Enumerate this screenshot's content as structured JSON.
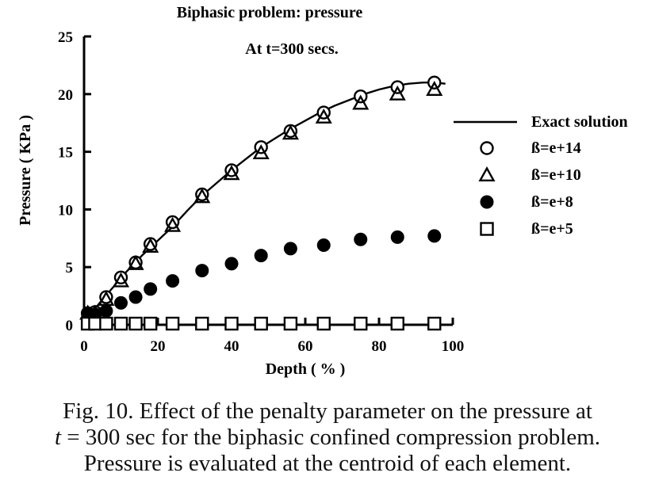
{
  "caption": {
    "line1": "Fig. 10. Effect of the penalty parameter on the pressure at",
    "line2_var": "t",
    "line2_rest": " = 300 sec for the biphasic confined compression problem.",
    "line3": "Pressure is evaluated at the centroid of each element."
  },
  "chart_data": {
    "type": "scatter",
    "title": "Biphasic problem: pressure",
    "subtitle": "At t=300 secs.",
    "xlabel": "Depth ( % )",
    "ylabel": "Pressure ( KPa )",
    "xlim": [
      0,
      100
    ],
    "ylim": [
      0,
      25
    ],
    "xticks": [
      0,
      20,
      40,
      60,
      80,
      100
    ],
    "yticks": [
      0,
      5,
      10,
      15,
      20,
      25
    ],
    "grid": false,
    "legend_position": "right",
    "series": [
      {
        "name": "Exact solution",
        "marker": "line",
        "x": [
          0,
          2,
          5,
          8,
          10,
          13,
          16,
          19,
          24,
          28,
          32,
          36,
          40,
          44,
          48,
          52,
          56,
          60,
          64,
          68,
          72,
          76,
          80,
          84,
          88,
          92,
          95,
          98
        ],
        "y": [
          0.2,
          1.0,
          2.2,
          3.3,
          4.1,
          5.1,
          6.1,
          7.0,
          8.5,
          9.9,
          11.2,
          12.3,
          13.4,
          14.4,
          15.4,
          16.2,
          17.0,
          17.7,
          18.4,
          19.0,
          19.5,
          20.0,
          20.4,
          20.7,
          20.9,
          21.0,
          21.0,
          20.9
        ]
      },
      {
        "name": "ß=e+14",
        "marker": "open-circle",
        "x": [
          1,
          3,
          6,
          10,
          14,
          18,
          24,
          32,
          40,
          48,
          56,
          65,
          75,
          85,
          95
        ],
        "y": [
          1.0,
          1.1,
          2.4,
          4.1,
          5.4,
          7.0,
          8.9,
          11.3,
          13.4,
          15.4,
          16.8,
          18.4,
          19.8,
          20.6,
          21.0
        ]
      },
      {
        "name": "ß=e+10",
        "marker": "open-triangle",
        "x": [
          1,
          3,
          6,
          10,
          14,
          18,
          24,
          32,
          40,
          48,
          56,
          65,
          75,
          85,
          95
        ],
        "y": [
          1.0,
          1.0,
          2.2,
          3.8,
          5.3,
          6.8,
          8.6,
          11.1,
          13.1,
          14.9,
          16.6,
          18.0,
          19.2,
          20.0,
          20.4
        ]
      },
      {
        "name": "ß=e+8",
        "marker": "filled-circle",
        "x": [
          1,
          3,
          6,
          10,
          14,
          18,
          24,
          32,
          40,
          48,
          56,
          65,
          75,
          85,
          95
        ],
        "y": [
          1.0,
          0.9,
          1.2,
          1.9,
          2.4,
          3.1,
          3.8,
          4.7,
          5.3,
          6.0,
          6.6,
          6.9,
          7.4,
          7.6,
          7.7
        ]
      },
      {
        "name": "ß=e+5",
        "marker": "open-square",
        "x": [
          1,
          3,
          6,
          10,
          14,
          18,
          24,
          32,
          40,
          48,
          56,
          65,
          75,
          85,
          95
        ],
        "y": [
          0.1,
          0.1,
          0.1,
          0.1,
          0.1,
          0.1,
          0.1,
          0.1,
          0.1,
          0.1,
          0.1,
          0.1,
          0.1,
          0.1,
          0.1
        ]
      }
    ]
  }
}
